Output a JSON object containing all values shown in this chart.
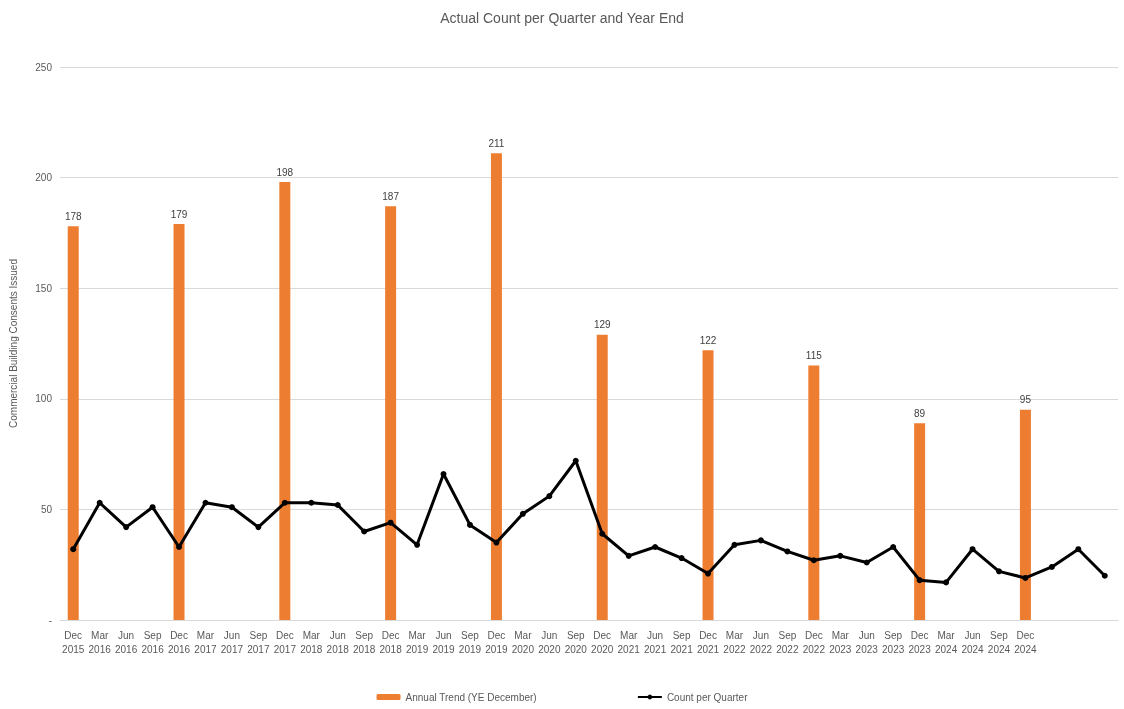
{
  "chart_data": {
    "type": "bar",
    "title": "Actual Count per Quarter and Year End",
    "ylabel": "Commercial Building Consents Issued",
    "categories": [
      "Dec\n2015",
      "Mar\n2016",
      "Jun\n2016",
      "Sep\n2016",
      "Dec\n2016",
      "Mar\n2017",
      "Jun\n2017",
      "Sep\n2017",
      "Dec\n2017",
      "Mar\n2018",
      "Jun\n2018",
      "Sep\n2018",
      "Dec\n2018",
      "Mar\n2019",
      "Jun\n2019",
      "Sep\n2019",
      "Dec\n2019",
      "Mar\n2020",
      "Jun\n2020",
      "Sep\n2020",
      "Dec\n2020",
      "Mar\n2021",
      "Jun\n2021",
      "Sep\n2021",
      "Dec\n2021",
      "Mar\n2022",
      "Jun\n2022",
      "Sep\n2022",
      "Dec\n2022",
      "Mar\n2023",
      "Jun\n2023",
      "Sep\n2023",
      "Dec\n2023",
      "Mar\n2024",
      "Jun\n2024",
      "Sep\n2024",
      "Dec\n2024",
      null,
      null,
      null
    ],
    "series": [
      {
        "name": "Annual Trend (YE December)",
        "color": "#ed7d31",
        "data_labels": true,
        "values": [
          178,
          null,
          null,
          null,
          179,
          null,
          null,
          null,
          198,
          null,
          null,
          null,
          187,
          null,
          null,
          null,
          211,
          null,
          null,
          null,
          129,
          null,
          null,
          null,
          122,
          null,
          null,
          null,
          115,
          null,
          null,
          null,
          89,
          null,
          null,
          null,
          95,
          null,
          null,
          null
        ]
      },
      {
        "name": "Count per Quarter",
        "type": "line",
        "color": "#000000",
        "marker": "circle",
        "line_style": "solid",
        "values": [
          32,
          53,
          42,
          51,
          33,
          53,
          51,
          42,
          53,
          53,
          52,
          40,
          44,
          34,
          66,
          43,
          35,
          48,
          56,
          72,
          39,
          29,
          33,
          28,
          21,
          34,
          36,
          31,
          27,
          29,
          26,
          33,
          18,
          17,
          32,
          22,
          19,
          24,
          32,
          20
        ]
      }
    ],
    "ylim": [
      0,
      250
    ],
    "yticks": [
      {
        "value": 0,
        "label": "-"
      },
      50,
      100,
      150,
      200,
      250
    ],
    "grid": "y",
    "legend": "bottom"
  }
}
